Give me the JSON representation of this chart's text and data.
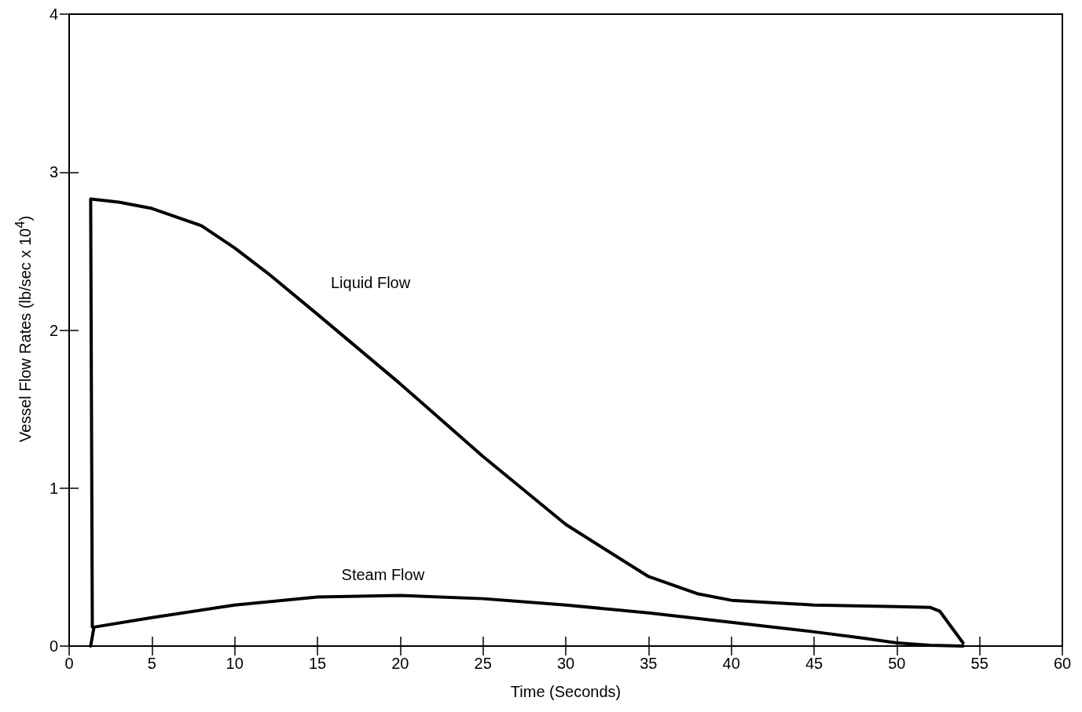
{
  "chart_data": {
    "type": "line",
    "xlabel": "Time (Seconds)",
    "ylabel": "Vessel Flow Rates (lb/sec x 10$^{4}$)",
    "xlim": [
      0,
      60
    ],
    "xticks": [
      0,
      5,
      10,
      15,
      20,
      25,
      30,
      35,
      40,
      45,
      50,
      55,
      60
    ],
    "ylim": [
      0,
      4
    ],
    "yticks": [
      0,
      1,
      2,
      3,
      4
    ],
    "grid": false,
    "legend": false,
    "marker": "none",
    "line_style": "solid",
    "series": [
      {
        "name": "Liquid Flow",
        "color": "#000000",
        "x": [
          1.4,
          1.3,
          3,
          5,
          8,
          10,
          12,
          15,
          20,
          25,
          30,
          35,
          38,
          40,
          45,
          50,
          52,
          52.6,
          54
        ],
        "values": [
          0.12,
          2.83,
          2.81,
          2.77,
          2.66,
          2.52,
          2.36,
          2.1,
          1.66,
          1.2,
          0.77,
          0.44,
          0.33,
          0.29,
          0.26,
          0.25,
          0.245,
          0.22,
          0.02
        ]
      },
      {
        "name": "Steam Flow",
        "color": "#000000",
        "x": [
          1.3,
          1.5,
          5,
          10,
          15,
          20,
          25,
          30,
          35,
          40,
          45,
          48,
          50,
          52,
          54
        ],
        "values": [
          0,
          0.12,
          0.18,
          0.26,
          0.31,
          0.32,
          0.3,
          0.26,
          0.21,
          0.15,
          0.09,
          0.05,
          0.02,
          0.005,
          0
        ]
      }
    ]
  }
}
